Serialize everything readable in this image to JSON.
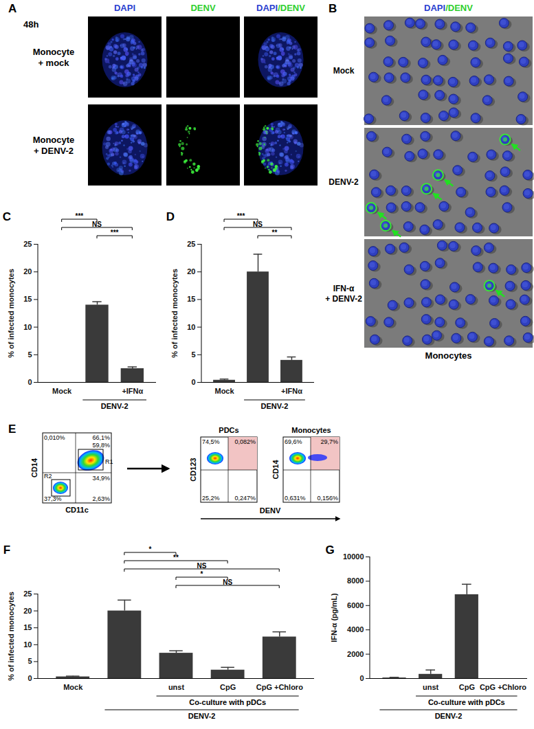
{
  "figure": {
    "A": {
      "label": "A",
      "time": "48h",
      "columns": [
        "DAPI",
        "DENV",
        "DAPI/DENV"
      ],
      "rows": [
        [
          "Monocyte",
          "+ mock"
        ],
        [
          "Monocyte",
          "+ DENV-2"
        ]
      ]
    },
    "B": {
      "label": "B",
      "header": "DAPI/DENV",
      "rows": [
        [
          "Mock"
        ],
        [
          "DENV-2"
        ],
        [
          "IFN-α",
          "+ DENV-2"
        ]
      ],
      "footer": "Monocytes"
    },
    "E": {
      "label": "E",
      "gating": {
        "x_label": "CD11c",
        "y_label": "CD14",
        "gates": [
          "R1",
          "R2"
        ],
        "percentages": {
          "upper_left": "0,010%",
          "upper_right": "66,1%",
          "R1": "59,8%",
          "middle_right": "34,9%",
          "lower_left": "37,3%",
          "lower_right": "2,63%"
        }
      },
      "plots": [
        {
          "title": "PDCs",
          "y_label": "CD123",
          "percentages": {
            "upper_left": "74,5%",
            "upper_right": "0,082%",
            "lower_left": "25,2%",
            "lower_right": "0,247%"
          }
        },
        {
          "title": "Monocytes",
          "y_label": "CD14",
          "percentages": {
            "upper_left": "69,6%",
            "upper_right": "29,7%",
            "lower_left": "0,631%",
            "lower_right": "0,156%"
          }
        }
      ],
      "x_label": "DENV"
    }
  },
  "chart_data": [
    {
      "type": "bar",
      "title": "C",
      "categories": [
        "Mock",
        null,
        "+IFNα"
      ],
      "values": [
        0,
        14,
        2.5
      ],
      "errors": [
        0,
        0.6,
        0.3
      ],
      "ylabel": "% of infected monocytes",
      "ylim": [
        0,
        25
      ],
      "yticks": [
        0,
        5,
        10,
        15,
        20,
        25
      ],
      "color": "#3a3a3a",
      "groups": [
        {
          "label": "DENV-2",
          "from": 1,
          "to": 2
        }
      ],
      "significance": [
        {
          "from": 0,
          "to": 1,
          "label": "***"
        },
        {
          "from": 0,
          "to": 2,
          "label": "NS"
        },
        {
          "from": 1,
          "to": 2,
          "label": "***"
        }
      ]
    },
    {
      "type": "bar",
      "title": "D",
      "categories": [
        "Mock",
        null,
        "+IFNα"
      ],
      "values": [
        0.4,
        20,
        4
      ],
      "errors": [
        0.2,
        3.2,
        0.6
      ],
      "ylabel": "% of infected monocytes",
      "ylim": [
        0,
        25
      ],
      "yticks": [
        0,
        5,
        10,
        15,
        20,
        25
      ],
      "color": "#3a3a3a",
      "groups": [
        {
          "label": "DENV-2",
          "from": 1,
          "to": 2
        }
      ],
      "significance": [
        {
          "from": 0,
          "to": 1,
          "label": "***"
        },
        {
          "from": 0,
          "to": 2,
          "label": "NS"
        },
        {
          "from": 1,
          "to": 2,
          "label": "**"
        }
      ]
    },
    {
      "type": "bar",
      "title": "F",
      "categories": [
        "Mock",
        null,
        "unst",
        "CpG",
        "CpG +Chloro"
      ],
      "values": [
        0.5,
        20,
        7.5,
        2.5,
        12.3
      ],
      "errors": [
        0.2,
        3.2,
        0.7,
        0.8,
        1.5
      ],
      "ylabel": "% of infected monocytes",
      "ylim": [
        0,
        25
      ],
      "yticks": [
        0,
        5,
        10,
        15,
        20,
        25
      ],
      "color": "#3a3a3a",
      "groups": [
        {
          "label": "Co-culture with pDCs",
          "from": 2,
          "to": 4
        },
        {
          "label": "DENV-2",
          "from": 1,
          "to": 4
        }
      ],
      "significance": [
        {
          "from": 1,
          "to": 2,
          "label": "*"
        },
        {
          "from": 1,
          "to": 3,
          "label": "**"
        },
        {
          "from": 1,
          "to": 4,
          "label": "NS"
        },
        {
          "from": 2,
          "to": 3,
          "label": "*"
        },
        {
          "from": 2,
          "to": 4,
          "label": "NS"
        }
      ]
    },
    {
      "type": "bar",
      "title": "G",
      "categories": [
        null,
        "unst",
        "CpG",
        "CpG +Chloro"
      ],
      "values": [
        50,
        350,
        6900,
        0
      ],
      "errors": [
        50,
        350,
        850,
        0
      ],
      "ylabel": "IFN-α (pg/mL)",
      "ylim": [
        0,
        10000
      ],
      "yticks": [
        0,
        2000,
        4000,
        6000,
        8000,
        10000
      ],
      "color": "#3a3a3a",
      "groups": [
        {
          "label": "Co-culture with pDCs",
          "from": 1,
          "to": 3
        },
        {
          "label": "DENV-2",
          "from": 0,
          "to": 3
        }
      ]
    }
  ]
}
